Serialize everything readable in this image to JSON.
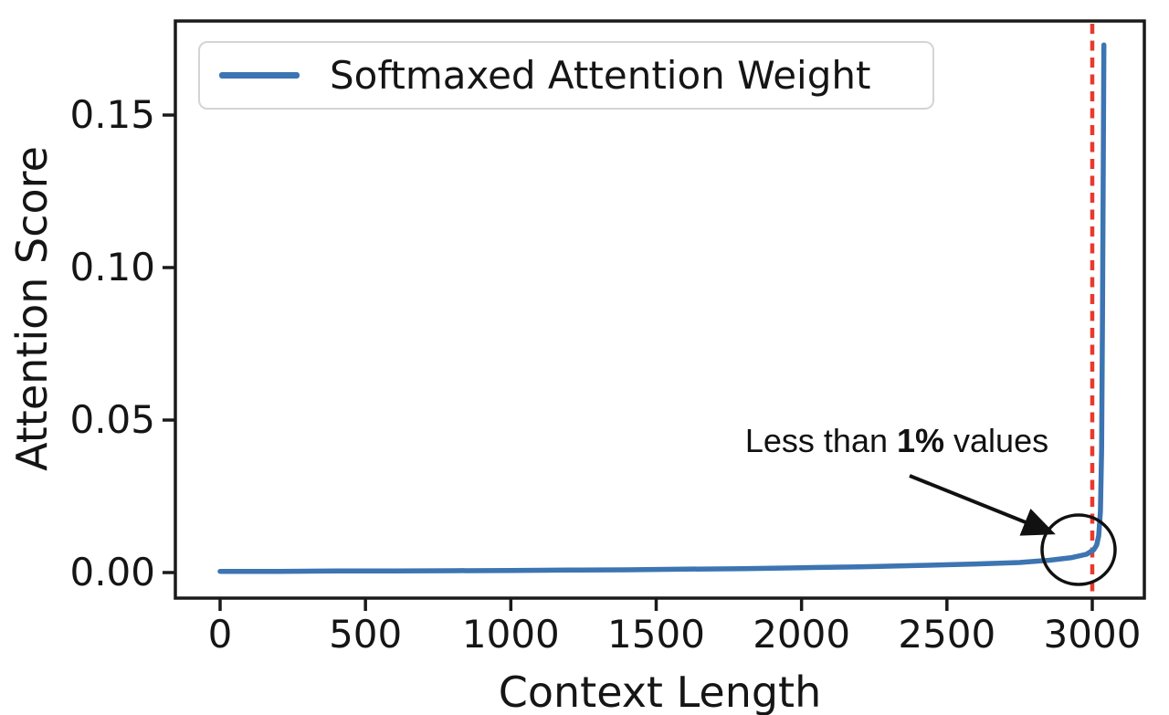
{
  "figure": {
    "background": "#ffffff",
    "axes_color": "#1a1a1a"
  },
  "chart_data": {
    "type": "line",
    "title": "",
    "xlabel": "Context Length",
    "ylabel": "Attention Score",
    "xlim": [
      -160,
      3180
    ],
    "ylim": [
      -0.008,
      0.181
    ],
    "grid": false,
    "x_ticks": [
      0,
      500,
      1000,
      1500,
      2000,
      2500,
      3000
    ],
    "x_tick_labels": [
      "0",
      "500",
      "1000",
      "1500",
      "2000",
      "2500",
      "3000"
    ],
    "y_ticks": [
      0.0,
      0.05,
      0.1,
      0.15
    ],
    "y_tick_labels": [
      "0.00",
      "0.05",
      "0.10",
      "0.15"
    ],
    "legend": {
      "position": "upper left",
      "entries": [
        {
          "label": "Softmaxed Attention Weight",
          "color": "#3d74b2",
          "style": "solid"
        }
      ]
    },
    "series": [
      {
        "name": "Softmaxed Attention Weight",
        "color": "#3d74b2",
        "x": [
          0,
          200,
          400,
          600,
          800,
          1000,
          1200,
          1400,
          1600,
          1800,
          2000,
          2200,
          2400,
          2600,
          2750,
          2850,
          2930,
          2980,
          3005,
          3015,
          3022,
          3028,
          3032,
          3035,
          3037,
          3039,
          3040
        ],
        "y": [
          0.0004,
          0.0004,
          0.0005,
          0.0005,
          0.0006,
          0.0007,
          0.0008,
          0.0009,
          0.0011,
          0.0013,
          0.0016,
          0.0019,
          0.0023,
          0.0028,
          0.0033,
          0.004,
          0.0049,
          0.006,
          0.0075,
          0.009,
          0.012,
          0.02,
          0.04,
          0.08,
          0.12,
          0.155,
          0.173
        ]
      }
    ],
    "vline": {
      "x": 3000,
      "color": "#e8392e",
      "style": "dashed"
    },
    "annotation": {
      "text_prefix": "Less than ",
      "text_bold": "1%",
      "text_suffix": " values",
      "points_to": "elbow of curve near x=3000 where values rise above ~0.01 (circled)"
    }
  }
}
